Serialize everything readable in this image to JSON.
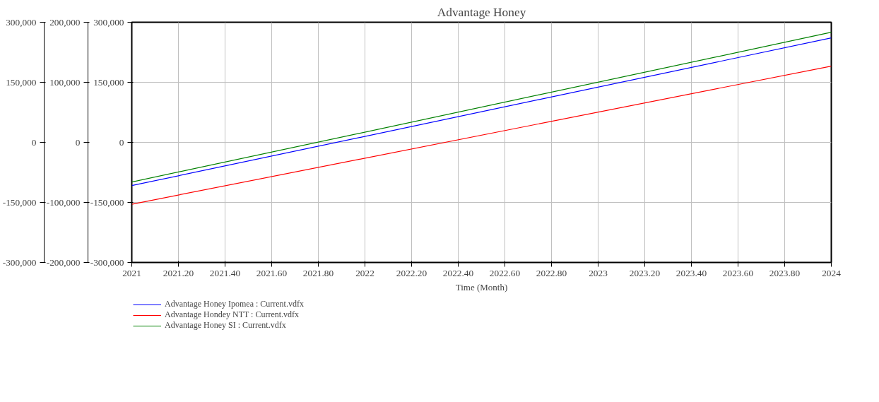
{
  "chart_data": {
    "type": "line",
    "title": "Advantage Honey",
    "xlabel": "Time (Month)",
    "x": [
      2021,
      2024
    ],
    "xlim": [
      2021,
      2024
    ],
    "xticks": [
      2021,
      {
        "value": 2021.2,
        "label": "2021.20"
      },
      {
        "value": 2021.4,
        "label": "2021.40"
      },
      {
        "value": 2021.6,
        "label": "2021.60"
      },
      {
        "value": 2021.8,
        "label": "2021.80"
      },
      2022,
      {
        "value": 2022.2,
        "label": "2022.20"
      },
      {
        "value": 2022.4,
        "label": "2022.40"
      },
      {
        "value": 2022.6,
        "label": "2022.60"
      },
      {
        "value": 2022.8,
        "label": "2022.80"
      },
      2023,
      {
        "value": 2023.2,
        "label": "2023.20"
      },
      {
        "value": 2023.4,
        "label": "2023.40"
      },
      {
        "value": 2023.6,
        "label": "2023.60"
      },
      {
        "value": 2023.8,
        "label": "2023.80"
      },
      2024
    ],
    "ylim": [
      -300000,
      300000
    ],
    "yticks": [
      {
        "value": -300000,
        "label": "-300,000"
      },
      {
        "value": -150000,
        "label": "-150,000"
      },
      0,
      {
        "value": 150000,
        "label": "150,000"
      },
      {
        "value": 300000,
        "label": "300,000"
      }
    ],
    "y2lim": [
      -200000,
      200000
    ],
    "y2ticks": [
      {
        "value": -200000,
        "label": "-200,000"
      },
      {
        "value": -100000,
        "label": "-100,000"
      },
      0,
      {
        "value": 100000,
        "label": "100,000"
      },
      {
        "value": 200000,
        "label": "200,000"
      }
    ],
    "y3lim": [
      -300000,
      300000
    ],
    "y3ticks": [
      {
        "value": -300000,
        "label": "-300,000"
      },
      {
        "value": -150000,
        "label": "-150,000"
      },
      0,
      {
        "value": 150000,
        "label": "150,000"
      },
      {
        "value": 300000,
        "label": "300,000"
      }
    ],
    "series": [
      {
        "name": "Advantage Honey Ipomea : Current.vdfx",
        "color": "#0000ff",
        "values": [
          -108000,
          261000
        ]
      },
      {
        "name": "Advantage Hondey NTT : Current.vdfx",
        "color": "#ff0000",
        "values": [
          -103000,
          127000
        ],
        "axis": "y2"
      },
      {
        "name": "Advantage Honey SI : Current.vdfx",
        "color": "#008000",
        "values": [
          -99000,
          275000
        ],
        "axis": "y3"
      }
    ],
    "grid": true,
    "legend": "bottom",
    "marker": "none",
    "line_style": "solid"
  }
}
